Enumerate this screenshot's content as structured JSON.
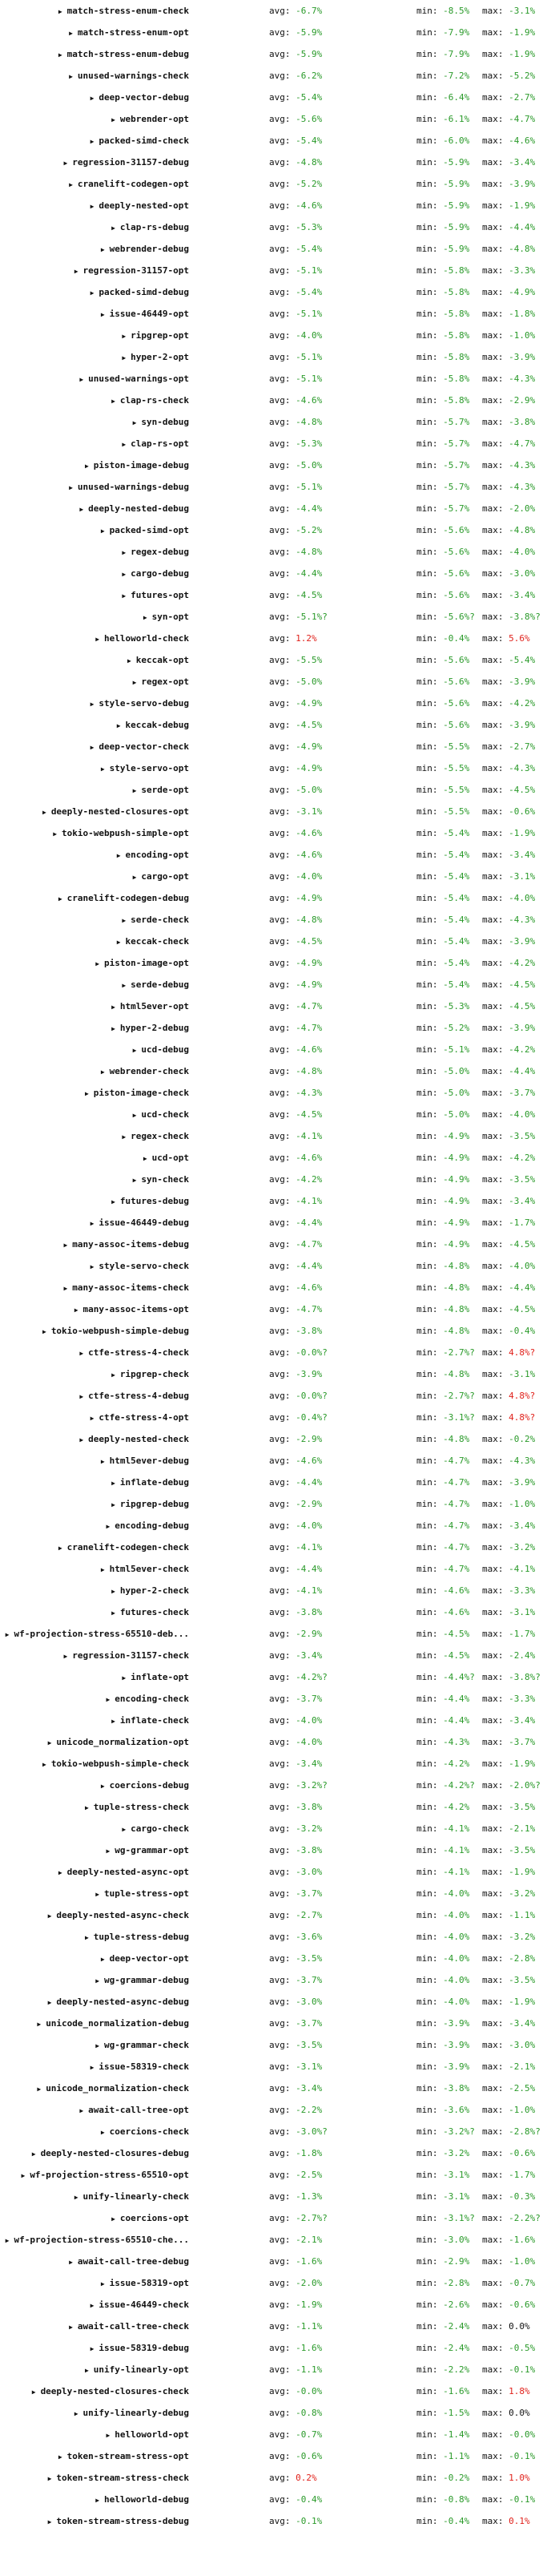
{
  "colors": {
    "improvement": "#2a9a2a",
    "regression": "#e0201a"
  },
  "labels": {
    "avg": "avg:",
    "min": "min:",
    "max": "max:"
  },
  "icons": {
    "expand": "triangle-right-icon"
  },
  "rows": [
    {
      "name": "match-stress-enum-check",
      "avg": "-6.7%",
      "min": "-8.5%",
      "max": "-3.1%"
    },
    {
      "name": "match-stress-enum-opt",
      "avg": "-5.9%",
      "min": "-7.9%",
      "max": "-1.9%"
    },
    {
      "name": "match-stress-enum-debug",
      "avg": "-5.9%",
      "min": "-7.9%",
      "max": "-1.9%"
    },
    {
      "name": "unused-warnings-check",
      "avg": "-6.2%",
      "min": "-7.2%",
      "max": "-5.2%"
    },
    {
      "name": "deep-vector-debug",
      "avg": "-5.4%",
      "min": "-6.4%",
      "max": "-2.7%"
    },
    {
      "name": "webrender-opt",
      "avg": "-5.6%",
      "min": "-6.1%",
      "max": "-4.7%"
    },
    {
      "name": "packed-simd-check",
      "avg": "-5.4%",
      "min": "-6.0%",
      "max": "-4.6%"
    },
    {
      "name": "regression-31157-debug",
      "avg": "-4.8%",
      "min": "-5.9%",
      "max": "-3.4%"
    },
    {
      "name": "cranelift-codegen-opt",
      "avg": "-5.2%",
      "min": "-5.9%",
      "max": "-3.9%"
    },
    {
      "name": "deeply-nested-opt",
      "avg": "-4.6%",
      "min": "-5.9%",
      "max": "-1.9%"
    },
    {
      "name": "clap-rs-debug",
      "avg": "-5.3%",
      "min": "-5.9%",
      "max": "-4.4%"
    },
    {
      "name": "webrender-debug",
      "avg": "-5.4%",
      "min": "-5.9%",
      "max": "-4.8%"
    },
    {
      "name": "regression-31157-opt",
      "avg": "-5.1%",
      "min": "-5.8%",
      "max": "-3.3%"
    },
    {
      "name": "packed-simd-debug",
      "avg": "-5.4%",
      "min": "-5.8%",
      "max": "-4.9%"
    },
    {
      "name": "issue-46449-opt",
      "avg": "-5.1%",
      "min": "-5.8%",
      "max": "-1.8%"
    },
    {
      "name": "ripgrep-opt",
      "avg": "-4.0%",
      "min": "-5.8%",
      "max": "-1.0%"
    },
    {
      "name": "hyper-2-opt",
      "avg": "-5.1%",
      "min": "-5.8%",
      "max": "-3.9%"
    },
    {
      "name": "unused-warnings-opt",
      "avg": "-5.1%",
      "min": "-5.8%",
      "max": "-4.3%"
    },
    {
      "name": "clap-rs-check",
      "avg": "-4.6%",
      "min": "-5.8%",
      "max": "-2.9%"
    },
    {
      "name": "syn-debug",
      "avg": "-4.8%",
      "min": "-5.7%",
      "max": "-3.8%"
    },
    {
      "name": "clap-rs-opt",
      "avg": "-5.3%",
      "min": "-5.7%",
      "max": "-4.7%"
    },
    {
      "name": "piston-image-debug",
      "avg": "-5.0%",
      "min": "-5.7%",
      "max": "-4.3%"
    },
    {
      "name": "unused-warnings-debug",
      "avg": "-5.1%",
      "min": "-5.7%",
      "max": "-4.3%"
    },
    {
      "name": "deeply-nested-debug",
      "avg": "-4.4%",
      "min": "-5.7%",
      "max": "-2.0%"
    },
    {
      "name": "packed-simd-opt",
      "avg": "-5.2%",
      "min": "-5.6%",
      "max": "-4.8%"
    },
    {
      "name": "regex-debug",
      "avg": "-4.8%",
      "min": "-5.6%",
      "max": "-4.0%"
    },
    {
      "name": "cargo-debug",
      "avg": "-4.4%",
      "min": "-5.6%",
      "max": "-3.0%"
    },
    {
      "name": "futures-opt",
      "avg": "-4.5%",
      "min": "-5.6%",
      "max": "-3.4%"
    },
    {
      "name": "syn-opt",
      "avg": "-5.1%?",
      "min": "-5.6%?",
      "max": "-3.8%?"
    },
    {
      "name": "helloworld-check",
      "avg": "1.2%",
      "min": "-0.4%",
      "max": "5.6%"
    },
    {
      "name": "keccak-opt",
      "avg": "-5.5%",
      "min": "-5.6%",
      "max": "-5.4%"
    },
    {
      "name": "regex-opt",
      "avg": "-5.0%",
      "min": "-5.6%",
      "max": "-3.9%"
    },
    {
      "name": "style-servo-debug",
      "avg": "-4.9%",
      "min": "-5.6%",
      "max": "-4.2%"
    },
    {
      "name": "keccak-debug",
      "avg": "-4.5%",
      "min": "-5.6%",
      "max": "-3.9%"
    },
    {
      "name": "deep-vector-check",
      "avg": "-4.9%",
      "min": "-5.5%",
      "max": "-2.7%"
    },
    {
      "name": "style-servo-opt",
      "avg": "-4.9%",
      "min": "-5.5%",
      "max": "-4.3%"
    },
    {
      "name": "serde-opt",
      "avg": "-5.0%",
      "min": "-5.5%",
      "max": "-4.5%"
    },
    {
      "name": "deeply-nested-closures-opt",
      "avg": "-3.1%",
      "min": "-5.5%",
      "max": "-0.6%"
    },
    {
      "name": "tokio-webpush-simple-opt",
      "avg": "-4.6%",
      "min": "-5.4%",
      "max": "-1.9%"
    },
    {
      "name": "encoding-opt",
      "avg": "-4.6%",
      "min": "-5.4%",
      "max": "-3.4%"
    },
    {
      "name": "cargo-opt",
      "avg": "-4.0%",
      "min": "-5.4%",
      "max": "-3.1%"
    },
    {
      "name": "cranelift-codegen-debug",
      "avg": "-4.9%",
      "min": "-5.4%",
      "max": "-4.0%"
    },
    {
      "name": "serde-check",
      "avg": "-4.8%",
      "min": "-5.4%",
      "max": "-4.3%"
    },
    {
      "name": "keccak-check",
      "avg": "-4.5%",
      "min": "-5.4%",
      "max": "-3.9%"
    },
    {
      "name": "piston-image-opt",
      "avg": "-4.9%",
      "min": "-5.4%",
      "max": "-4.2%"
    },
    {
      "name": "serde-debug",
      "avg": "-4.9%",
      "min": "-5.4%",
      "max": "-4.5%"
    },
    {
      "name": "html5ever-opt",
      "avg": "-4.7%",
      "min": "-5.3%",
      "max": "-4.5%"
    },
    {
      "name": "hyper-2-debug",
      "avg": "-4.7%",
      "min": "-5.2%",
      "max": "-3.9%"
    },
    {
      "name": "ucd-debug",
      "avg": "-4.6%",
      "min": "-5.1%",
      "max": "-4.2%"
    },
    {
      "name": "webrender-check",
      "avg": "-4.8%",
      "min": "-5.0%",
      "max": "-4.4%"
    },
    {
      "name": "piston-image-check",
      "avg": "-4.3%",
      "min": "-5.0%",
      "max": "-3.7%"
    },
    {
      "name": "ucd-check",
      "avg": "-4.5%",
      "min": "-5.0%",
      "max": "-4.0%"
    },
    {
      "name": "regex-check",
      "avg": "-4.1%",
      "min": "-4.9%",
      "max": "-3.5%"
    },
    {
      "name": "ucd-opt",
      "avg": "-4.6%",
      "min": "-4.9%",
      "max": "-4.2%"
    },
    {
      "name": "syn-check",
      "avg": "-4.2%",
      "min": "-4.9%",
      "max": "-3.5%"
    },
    {
      "name": "futures-debug",
      "avg": "-4.1%",
      "min": "-4.9%",
      "max": "-3.4%"
    },
    {
      "name": "issue-46449-debug",
      "avg": "-4.4%",
      "min": "-4.9%",
      "max": "-1.7%"
    },
    {
      "name": "many-assoc-items-debug",
      "avg": "-4.7%",
      "min": "-4.9%",
      "max": "-4.5%"
    },
    {
      "name": "style-servo-check",
      "avg": "-4.4%",
      "min": "-4.8%",
      "max": "-4.0%"
    },
    {
      "name": "many-assoc-items-check",
      "avg": "-4.6%",
      "min": "-4.8%",
      "max": "-4.4%"
    },
    {
      "name": "many-assoc-items-opt",
      "avg": "-4.7%",
      "min": "-4.8%",
      "max": "-4.5%"
    },
    {
      "name": "tokio-webpush-simple-debug",
      "avg": "-3.8%",
      "min": "-4.8%",
      "max": "-0.4%"
    },
    {
      "name": "ctfe-stress-4-check",
      "avg": "-0.0%?",
      "min": "-2.7%?",
      "max": "4.8%?"
    },
    {
      "name": "ripgrep-check",
      "avg": "-3.9%",
      "min": "-4.8%",
      "max": "-3.1%"
    },
    {
      "name": "ctfe-stress-4-debug",
      "avg": "-0.0%?",
      "min": "-2.7%?",
      "max": "4.8%?"
    },
    {
      "name": "ctfe-stress-4-opt",
      "avg": "-0.4%?",
      "min": "-3.1%?",
      "max": "4.8%?"
    },
    {
      "name": "deeply-nested-check",
      "avg": "-2.9%",
      "min": "-4.8%",
      "max": "-0.2%"
    },
    {
      "name": "html5ever-debug",
      "avg": "-4.6%",
      "min": "-4.7%",
      "max": "-4.3%"
    },
    {
      "name": "inflate-debug",
      "avg": "-4.4%",
      "min": "-4.7%",
      "max": "-3.9%"
    },
    {
      "name": "ripgrep-debug",
      "avg": "-2.9%",
      "min": "-4.7%",
      "max": "-1.0%"
    },
    {
      "name": "encoding-debug",
      "avg": "-4.0%",
      "min": "-4.7%",
      "max": "-3.4%"
    },
    {
      "name": "cranelift-codegen-check",
      "avg": "-4.1%",
      "min": "-4.7%",
      "max": "-3.2%"
    },
    {
      "name": "html5ever-check",
      "avg": "-4.4%",
      "min": "-4.7%",
      "max": "-4.1%"
    },
    {
      "name": "hyper-2-check",
      "avg": "-4.1%",
      "min": "-4.6%",
      "max": "-3.3%"
    },
    {
      "name": "futures-check",
      "avg": "-3.8%",
      "min": "-4.6%",
      "max": "-3.1%"
    },
    {
      "name": "wf-projection-stress-65510-deb...",
      "avg": "-2.9%",
      "min": "-4.5%",
      "max": "-1.7%",
      "tall": true
    },
    {
      "name": "regression-31157-check",
      "avg": "-3.4%",
      "min": "-4.5%",
      "max": "-2.4%"
    },
    {
      "name": "inflate-opt",
      "avg": "-4.2%?",
      "min": "-4.4%?",
      "max": "-3.8%?"
    },
    {
      "name": "encoding-check",
      "avg": "-3.7%",
      "min": "-4.4%",
      "max": "-3.3%"
    },
    {
      "name": "inflate-check",
      "avg": "-4.0%",
      "min": "-4.4%",
      "max": "-3.4%"
    },
    {
      "name": "unicode_normalization-opt",
      "avg": "-4.0%",
      "min": "-4.3%",
      "max": "-3.7%"
    },
    {
      "name": "tokio-webpush-simple-check",
      "avg": "-3.4%",
      "min": "-4.2%",
      "max": "-1.9%"
    },
    {
      "name": "coercions-debug",
      "avg": "-3.2%?",
      "min": "-4.2%?",
      "max": "-2.0%?"
    },
    {
      "name": "tuple-stress-check",
      "avg": "-3.8%",
      "min": "-4.2%",
      "max": "-3.5%"
    },
    {
      "name": "cargo-check",
      "avg": "-3.2%",
      "min": "-4.1%",
      "max": "-2.1%"
    },
    {
      "name": "wg-grammar-opt",
      "avg": "-3.8%",
      "min": "-4.1%",
      "max": "-3.5%"
    },
    {
      "name": "deeply-nested-async-opt",
      "avg": "-3.0%",
      "min": "-4.1%",
      "max": "-1.9%"
    },
    {
      "name": "tuple-stress-opt",
      "avg": "-3.7%",
      "min": "-4.0%",
      "max": "-3.2%"
    },
    {
      "name": "deeply-nested-async-check",
      "avg": "-2.7%",
      "min": "-4.0%",
      "max": "-1.1%"
    },
    {
      "name": "tuple-stress-debug",
      "avg": "-3.6%",
      "min": "-4.0%",
      "max": "-3.2%"
    },
    {
      "name": "deep-vector-opt",
      "avg": "-3.5%",
      "min": "-4.0%",
      "max": "-2.8%"
    },
    {
      "name": "wg-grammar-debug",
      "avg": "-3.7%",
      "min": "-4.0%",
      "max": "-3.5%"
    },
    {
      "name": "deeply-nested-async-debug",
      "avg": "-3.0%",
      "min": "-4.0%",
      "max": "-1.9%"
    },
    {
      "name": "unicode_normalization-debug",
      "avg": "-3.7%",
      "min": "-3.9%",
      "max": "-3.4%"
    },
    {
      "name": "wg-grammar-check",
      "avg": "-3.5%",
      "min": "-3.9%",
      "max": "-3.0%"
    },
    {
      "name": "issue-58319-check",
      "avg": "-3.1%",
      "min": "-3.9%",
      "max": "-2.1%"
    },
    {
      "name": "unicode_normalization-check",
      "avg": "-3.4%",
      "min": "-3.8%",
      "max": "-2.5%"
    },
    {
      "name": "await-call-tree-opt",
      "avg": "-2.2%",
      "min": "-3.6%",
      "max": "-1.0%"
    },
    {
      "name": "coercions-check",
      "avg": "-3.0%?",
      "min": "-3.2%?",
      "max": "-2.8%?"
    },
    {
      "name": "deeply-nested-closures-debug",
      "avg": "-1.8%",
      "min": "-3.2%",
      "max": "-0.6%"
    },
    {
      "name": "wf-projection-stress-65510-opt",
      "avg": "-2.5%",
      "min": "-3.1%",
      "max": "-1.7%",
      "tall": true
    },
    {
      "name": "unify-linearly-check",
      "avg": "-1.3%",
      "min": "-3.1%",
      "max": "-0.3%"
    },
    {
      "name": "coercions-opt",
      "avg": "-2.7%?",
      "min": "-3.1%?",
      "max": "-2.2%?"
    },
    {
      "name": "wf-projection-stress-65510-che...",
      "avg": "-2.1%",
      "min": "-3.0%",
      "max": "-1.6%",
      "tall": true
    },
    {
      "name": "await-call-tree-debug",
      "avg": "-1.6%",
      "min": "-2.9%",
      "max": "-1.0%"
    },
    {
      "name": "issue-58319-opt",
      "avg": "-2.0%",
      "min": "-2.8%",
      "max": "-0.7%"
    },
    {
      "name": "issue-46449-check",
      "avg": "-1.9%",
      "min": "-2.6%",
      "max": "-0.6%"
    },
    {
      "name": "await-call-tree-check",
      "avg": "-1.1%",
      "min": "-2.4%",
      "max": "0.0%"
    },
    {
      "name": "issue-58319-debug",
      "avg": "-1.6%",
      "min": "-2.4%",
      "max": "-0.5%"
    },
    {
      "name": "unify-linearly-opt",
      "avg": "-1.1%",
      "min": "-2.2%",
      "max": "-0.1%"
    },
    {
      "name": "deeply-nested-closures-check",
      "avg": "-0.0%",
      "min": "-1.6%",
      "max": "1.8%"
    },
    {
      "name": "unify-linearly-debug",
      "avg": "-0.8%",
      "min": "-1.5%",
      "max": "0.0%"
    },
    {
      "name": "helloworld-opt",
      "avg": "-0.7%",
      "min": "-1.4%",
      "max": "-0.0%"
    },
    {
      "name": "token-stream-stress-opt",
      "avg": "-0.6%",
      "min": "-1.1%",
      "max": "-0.1%"
    },
    {
      "name": "token-stream-stress-check",
      "avg": "0.2%",
      "min": "-0.2%",
      "max": "1.0%"
    },
    {
      "name": "helloworld-debug",
      "avg": "-0.4%",
      "min": "-0.8%",
      "max": "-0.1%"
    },
    {
      "name": "token-stream-stress-debug",
      "avg": "-0.1%",
      "min": "-0.4%",
      "max": "0.1%"
    }
  ]
}
